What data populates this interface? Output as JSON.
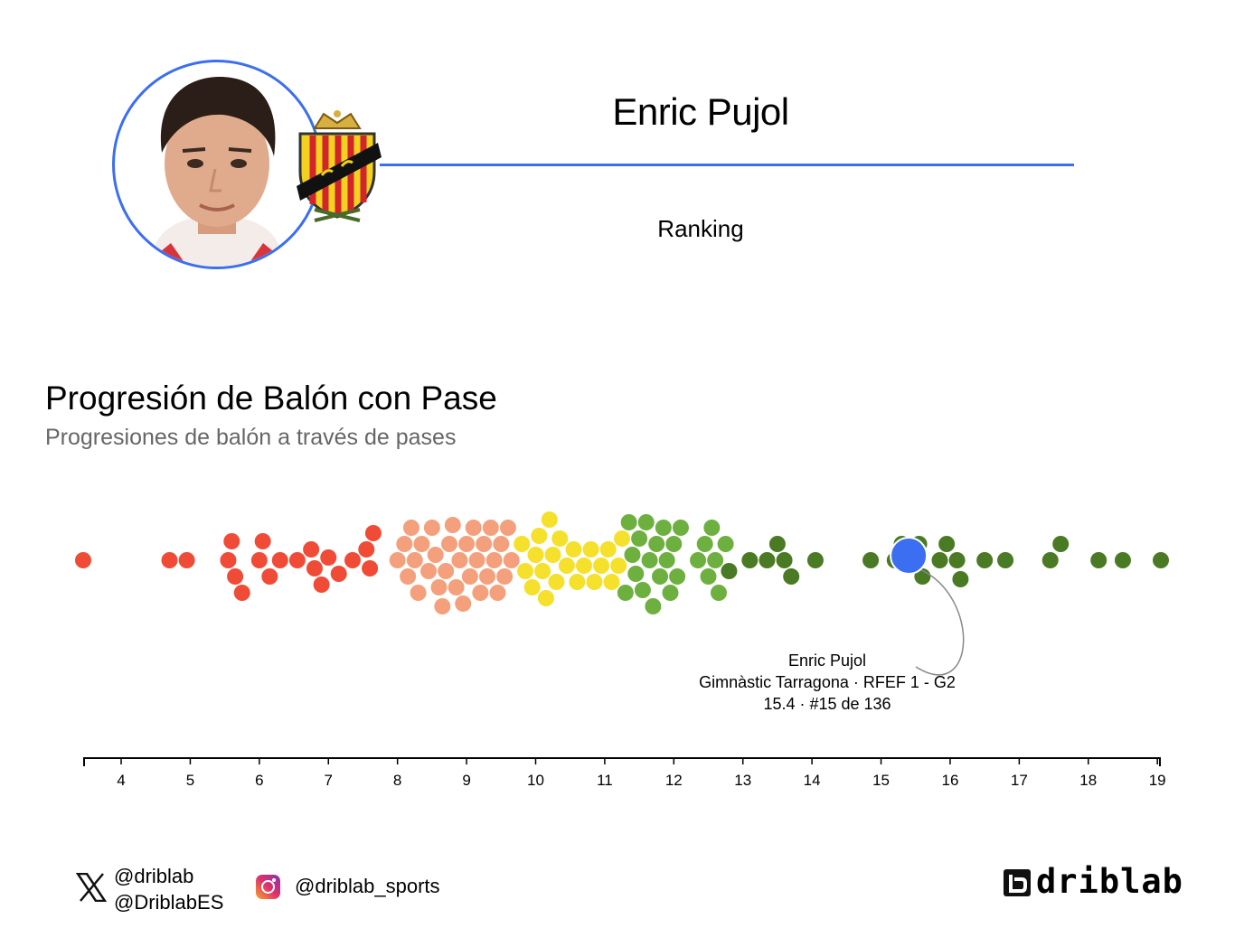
{
  "header": {
    "player_name": "Enric Pujol",
    "subtitle": "Ranking",
    "accent_color": "#3b6ef0"
  },
  "chart_data": {
    "type": "scatter",
    "title": "Progresión de Balón con Pase",
    "subtitle": "Progresiones de balón a través de pases",
    "xlim": [
      3.45,
      19.05
    ],
    "xticks": [
      4,
      5,
      6,
      7,
      8,
      9,
      10,
      11,
      12,
      13,
      14,
      15,
      16,
      17,
      18,
      19
    ],
    "grid": false,
    "highlight": {
      "name": "Enric Pujol",
      "team_league": "Gimnàstic Tarragona · RFEF 1 - G2",
      "value_rank": "15.4 · #15 de 136",
      "value": 15.4,
      "color": "#3b6ef0"
    },
    "color_bands": [
      {
        "range": [
          3.4,
          8.0
        ],
        "color": "#f04b36"
      },
      {
        "range": [
          8.0,
          9.7
        ],
        "color": "#f4a07c"
      },
      {
        "range": [
          9.7,
          11.3
        ],
        "color": "#f5e02c"
      },
      {
        "range": [
          11.3,
          12.8
        ],
        "color": "#6db040"
      },
      {
        "range": [
          12.8,
          19.1
        ],
        "color": "#4a7a23"
      }
    ],
    "values": [
      3.45,
      4.7,
      4.95,
      5.55,
      5.6,
      5.65,
      5.75,
      6.0,
      6.05,
      6.15,
      6.3,
      6.55,
      6.75,
      6.8,
      6.9,
      7.0,
      7.15,
      7.35,
      7.55,
      7.6,
      7.65,
      8.0,
      8.1,
      8.15,
      8.2,
      8.25,
      8.3,
      8.35,
      8.45,
      8.5,
      8.55,
      8.6,
      8.65,
      8.7,
      8.75,
      8.8,
      8.85,
      8.9,
      8.95,
      9.0,
      9.05,
      9.1,
      9.15,
      9.2,
      9.25,
      9.3,
      9.35,
      9.4,
      9.45,
      9.5,
      9.55,
      9.6,
      9.65,
      9.8,
      9.85,
      9.95,
      10.0,
      10.05,
      10.1,
      10.15,
      10.2,
      10.25,
      10.3,
      10.35,
      10.45,
      10.55,
      10.6,
      10.7,
      10.8,
      10.85,
      10.95,
      11.05,
      11.1,
      11.2,
      11.25,
      11.3,
      11.35,
      11.4,
      11.45,
      11.5,
      11.55,
      11.6,
      11.65,
      11.7,
      11.75,
      11.8,
      11.85,
      11.9,
      11.95,
      12.0,
      12.05,
      12.1,
      12.35,
      12.45,
      12.5,
      12.55,
      12.6,
      12.65,
      12.75,
      12.8,
      13.1,
      13.35,
      13.5,
      13.6,
      13.7,
      14.05,
      14.85,
      15.2,
      15.3,
      15.45,
      15.55,
      15.6,
      15.85,
      15.95,
      16.1,
      16.15,
      16.5,
      16.8,
      17.45,
      17.6,
      18.15,
      18.5,
      19.05
    ]
  },
  "footer": {
    "x_handles": [
      "@driblab",
      "@DriblabES"
    ],
    "instagram_handle": "@driblab_sports",
    "brand": "driblab"
  }
}
